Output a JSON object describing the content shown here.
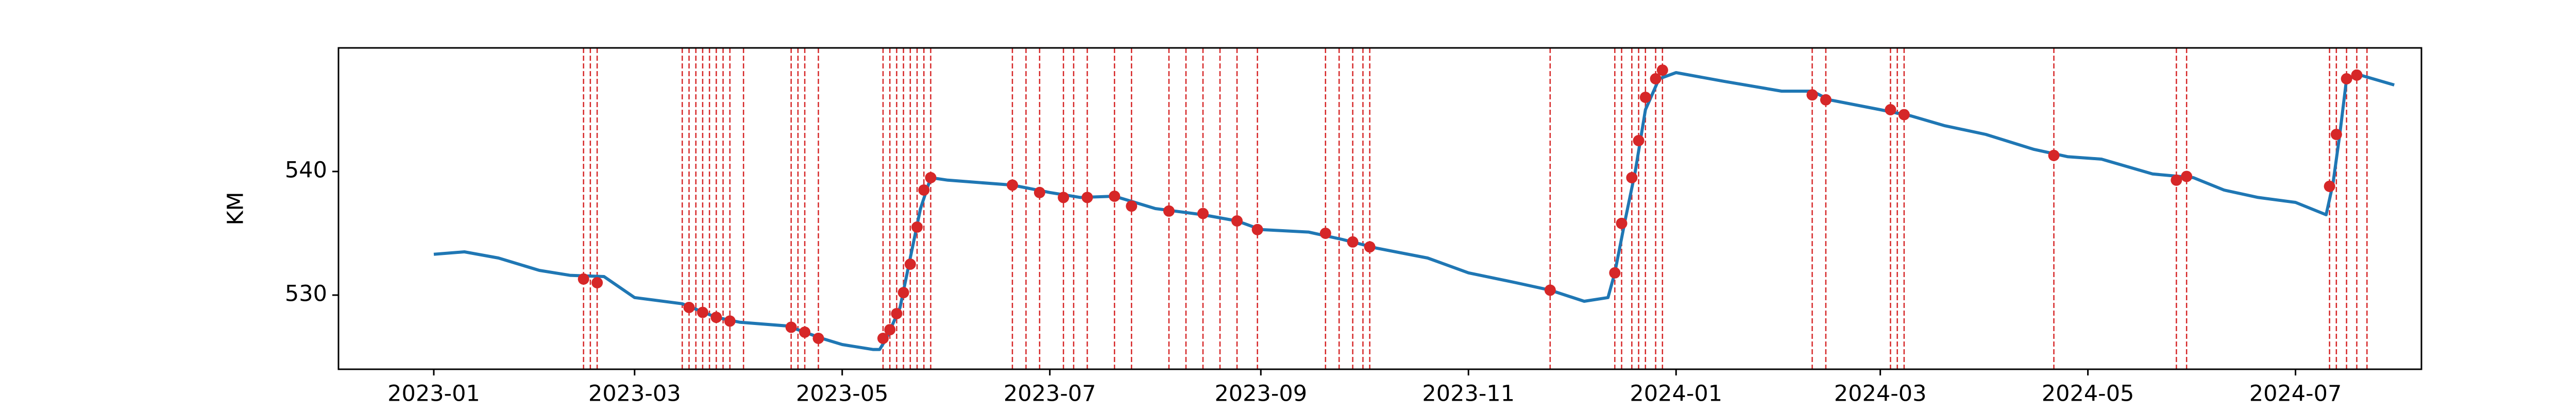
{
  "chart_data": {
    "type": "line",
    "ylabel": "KM",
    "xlim": [
      "2022-12-04",
      "2024-08-07"
    ],
    "ylim": [
      524,
      550
    ],
    "yticks": [
      530,
      540
    ],
    "xticks": [
      {
        "value": "2023-01-01",
        "label": "2023-01"
      },
      {
        "value": "2023-03-01",
        "label": "2023-03"
      },
      {
        "value": "2023-05-01",
        "label": "2023-05"
      },
      {
        "value": "2023-07-01",
        "label": "2023-07"
      },
      {
        "value": "2023-09-01",
        "label": "2023-09"
      },
      {
        "value": "2023-11-01",
        "label": "2023-11"
      },
      {
        "value": "2024-01-01",
        "label": "2024-01"
      },
      {
        "value": "2024-03-01",
        "label": "2024-03"
      },
      {
        "value": "2024-05-01",
        "label": "2024-05"
      },
      {
        "value": "2024-07-01",
        "label": "2024-07"
      }
    ],
    "vlines": {
      "color": "#d62728",
      "x": [
        "2023-02-14",
        "2023-02-16",
        "2023-02-18",
        "2023-03-15",
        "2023-03-17",
        "2023-03-19",
        "2023-03-21",
        "2023-03-23",
        "2023-03-25",
        "2023-03-27",
        "2023-03-29",
        "2023-04-02",
        "2023-04-16",
        "2023-04-18",
        "2023-04-20",
        "2023-04-24",
        "2023-05-13",
        "2023-05-15",
        "2023-05-17",
        "2023-05-19",
        "2023-05-21",
        "2023-05-23",
        "2023-05-25",
        "2023-05-27",
        "2023-06-20",
        "2023-06-24",
        "2023-06-28",
        "2023-07-05",
        "2023-07-08",
        "2023-07-12",
        "2023-07-20",
        "2023-07-25",
        "2023-08-05",
        "2023-08-10",
        "2023-08-15",
        "2023-08-20",
        "2023-08-25",
        "2023-08-31",
        "2023-09-20",
        "2023-09-24",
        "2023-09-28",
        "2023-10-01",
        "2023-10-03",
        "2023-11-25",
        "2023-12-14",
        "2023-12-16",
        "2023-12-19",
        "2023-12-21",
        "2023-12-23",
        "2023-12-26",
        "2023-12-28",
        "2024-02-10",
        "2024-02-14",
        "2024-03-04",
        "2024-03-06",
        "2024-03-08",
        "2024-04-21",
        "2024-05-27",
        "2024-05-30",
        "2024-07-11",
        "2024-07-13",
        "2024-07-16",
        "2024-07-19",
        "2024-07-22"
      ]
    },
    "series": [
      {
        "type": "line",
        "color": "#1f77b4",
        "x": [
          "2023-01-01",
          "2023-01-10",
          "2023-01-20",
          "2023-02-01",
          "2023-02-10",
          "2023-02-20",
          "2023-03-01",
          "2023-03-15",
          "2023-03-25",
          "2023-04-01",
          "2023-04-15",
          "2023-04-25",
          "2023-05-01",
          "2023-05-10",
          "2023-05-12",
          "2023-05-14",
          "2023-05-18",
          "2023-05-21",
          "2023-05-24",
          "2023-05-27",
          "2023-06-01",
          "2023-06-20",
          "2023-07-01",
          "2023-07-10",
          "2023-07-20",
          "2023-08-01",
          "2023-08-15",
          "2023-08-25",
          "2023-09-01",
          "2023-09-15",
          "2023-09-25",
          "2023-10-05",
          "2023-10-20",
          "2023-11-01",
          "2023-11-15",
          "2023-11-25",
          "2023-12-05",
          "2023-12-12",
          "2023-12-14",
          "2023-12-17",
          "2023-12-20",
          "2023-12-23",
          "2023-12-27",
          "2024-01-01",
          "2024-01-15",
          "2024-02-01",
          "2024-02-10",
          "2024-02-15",
          "2024-03-01",
          "2024-03-10",
          "2024-03-20",
          "2024-04-01",
          "2024-04-15",
          "2024-04-25",
          "2024-05-05",
          "2024-05-20",
          "2024-06-01",
          "2024-06-10",
          "2024-06-20",
          "2024-07-01",
          "2024-07-10",
          "2024-07-12",
          "2024-07-14",
          "2024-07-16",
          "2024-07-20",
          "2024-07-30"
        ],
        "values": [
          533.3,
          533.5,
          533.0,
          532.0,
          531.6,
          531.5,
          529.8,
          529.3,
          528.2,
          527.8,
          527.5,
          526.5,
          526.0,
          525.6,
          525.6,
          526.5,
          529,
          533,
          537,
          539.5,
          539.3,
          538.9,
          538.3,
          537.9,
          538.0,
          537.0,
          536.5,
          536.0,
          535.3,
          535.1,
          534.5,
          533.8,
          533.0,
          531.8,
          531.0,
          530.4,
          529.5,
          529.8,
          531.8,
          536,
          540,
          545,
          547.5,
          548.0,
          547.3,
          546.5,
          546.5,
          545.8,
          545.0,
          544.5,
          543.7,
          543.0,
          541.8,
          541.2,
          541.0,
          539.8,
          539.5,
          538.5,
          537.9,
          537.5,
          536.5,
          539,
          543,
          547.5,
          547.8,
          547.0
        ]
      },
      {
        "type": "scatter",
        "color": "#d62728",
        "x": [
          "2023-02-14",
          "2023-02-18",
          "2023-03-17",
          "2023-03-21",
          "2023-03-25",
          "2023-03-29",
          "2023-04-16",
          "2023-04-20",
          "2023-04-24",
          "2023-05-13",
          "2023-05-15",
          "2023-05-17",
          "2023-05-19",
          "2023-05-21",
          "2023-05-23",
          "2023-05-25",
          "2023-05-27",
          "2023-06-20",
          "2023-06-28",
          "2023-07-05",
          "2023-07-12",
          "2023-07-20",
          "2023-07-25",
          "2023-08-05",
          "2023-08-15",
          "2023-08-25",
          "2023-08-31",
          "2023-09-20",
          "2023-09-28",
          "2023-10-03",
          "2023-11-25",
          "2023-12-14",
          "2023-12-16",
          "2023-12-19",
          "2023-12-21",
          "2023-12-23",
          "2023-12-26",
          "2023-12-28",
          "2024-02-10",
          "2024-02-14",
          "2024-03-04",
          "2024-03-08",
          "2024-04-21",
          "2024-05-27",
          "2024-05-30",
          "2024-07-11",
          "2024-07-13",
          "2024-07-16",
          "2024-07-19"
        ],
        "values": [
          531.3,
          531.0,
          529.0,
          528.6,
          528.2,
          527.9,
          527.4,
          527.0,
          526.5,
          526.5,
          527.2,
          528.5,
          530.2,
          532.5,
          535.5,
          538.5,
          539.5,
          538.9,
          538.3,
          537.9,
          537.9,
          538.0,
          537.2,
          536.8,
          536.6,
          536.0,
          535.3,
          535.0,
          534.3,
          533.9,
          530.4,
          531.8,
          535.8,
          539.5,
          542.5,
          546.0,
          547.5,
          548.2,
          546.2,
          545.8,
          545.0,
          544.6,
          541.3,
          539.3,
          539.6,
          538.8,
          543.0,
          547.5,
          547.8
        ]
      }
    ]
  }
}
